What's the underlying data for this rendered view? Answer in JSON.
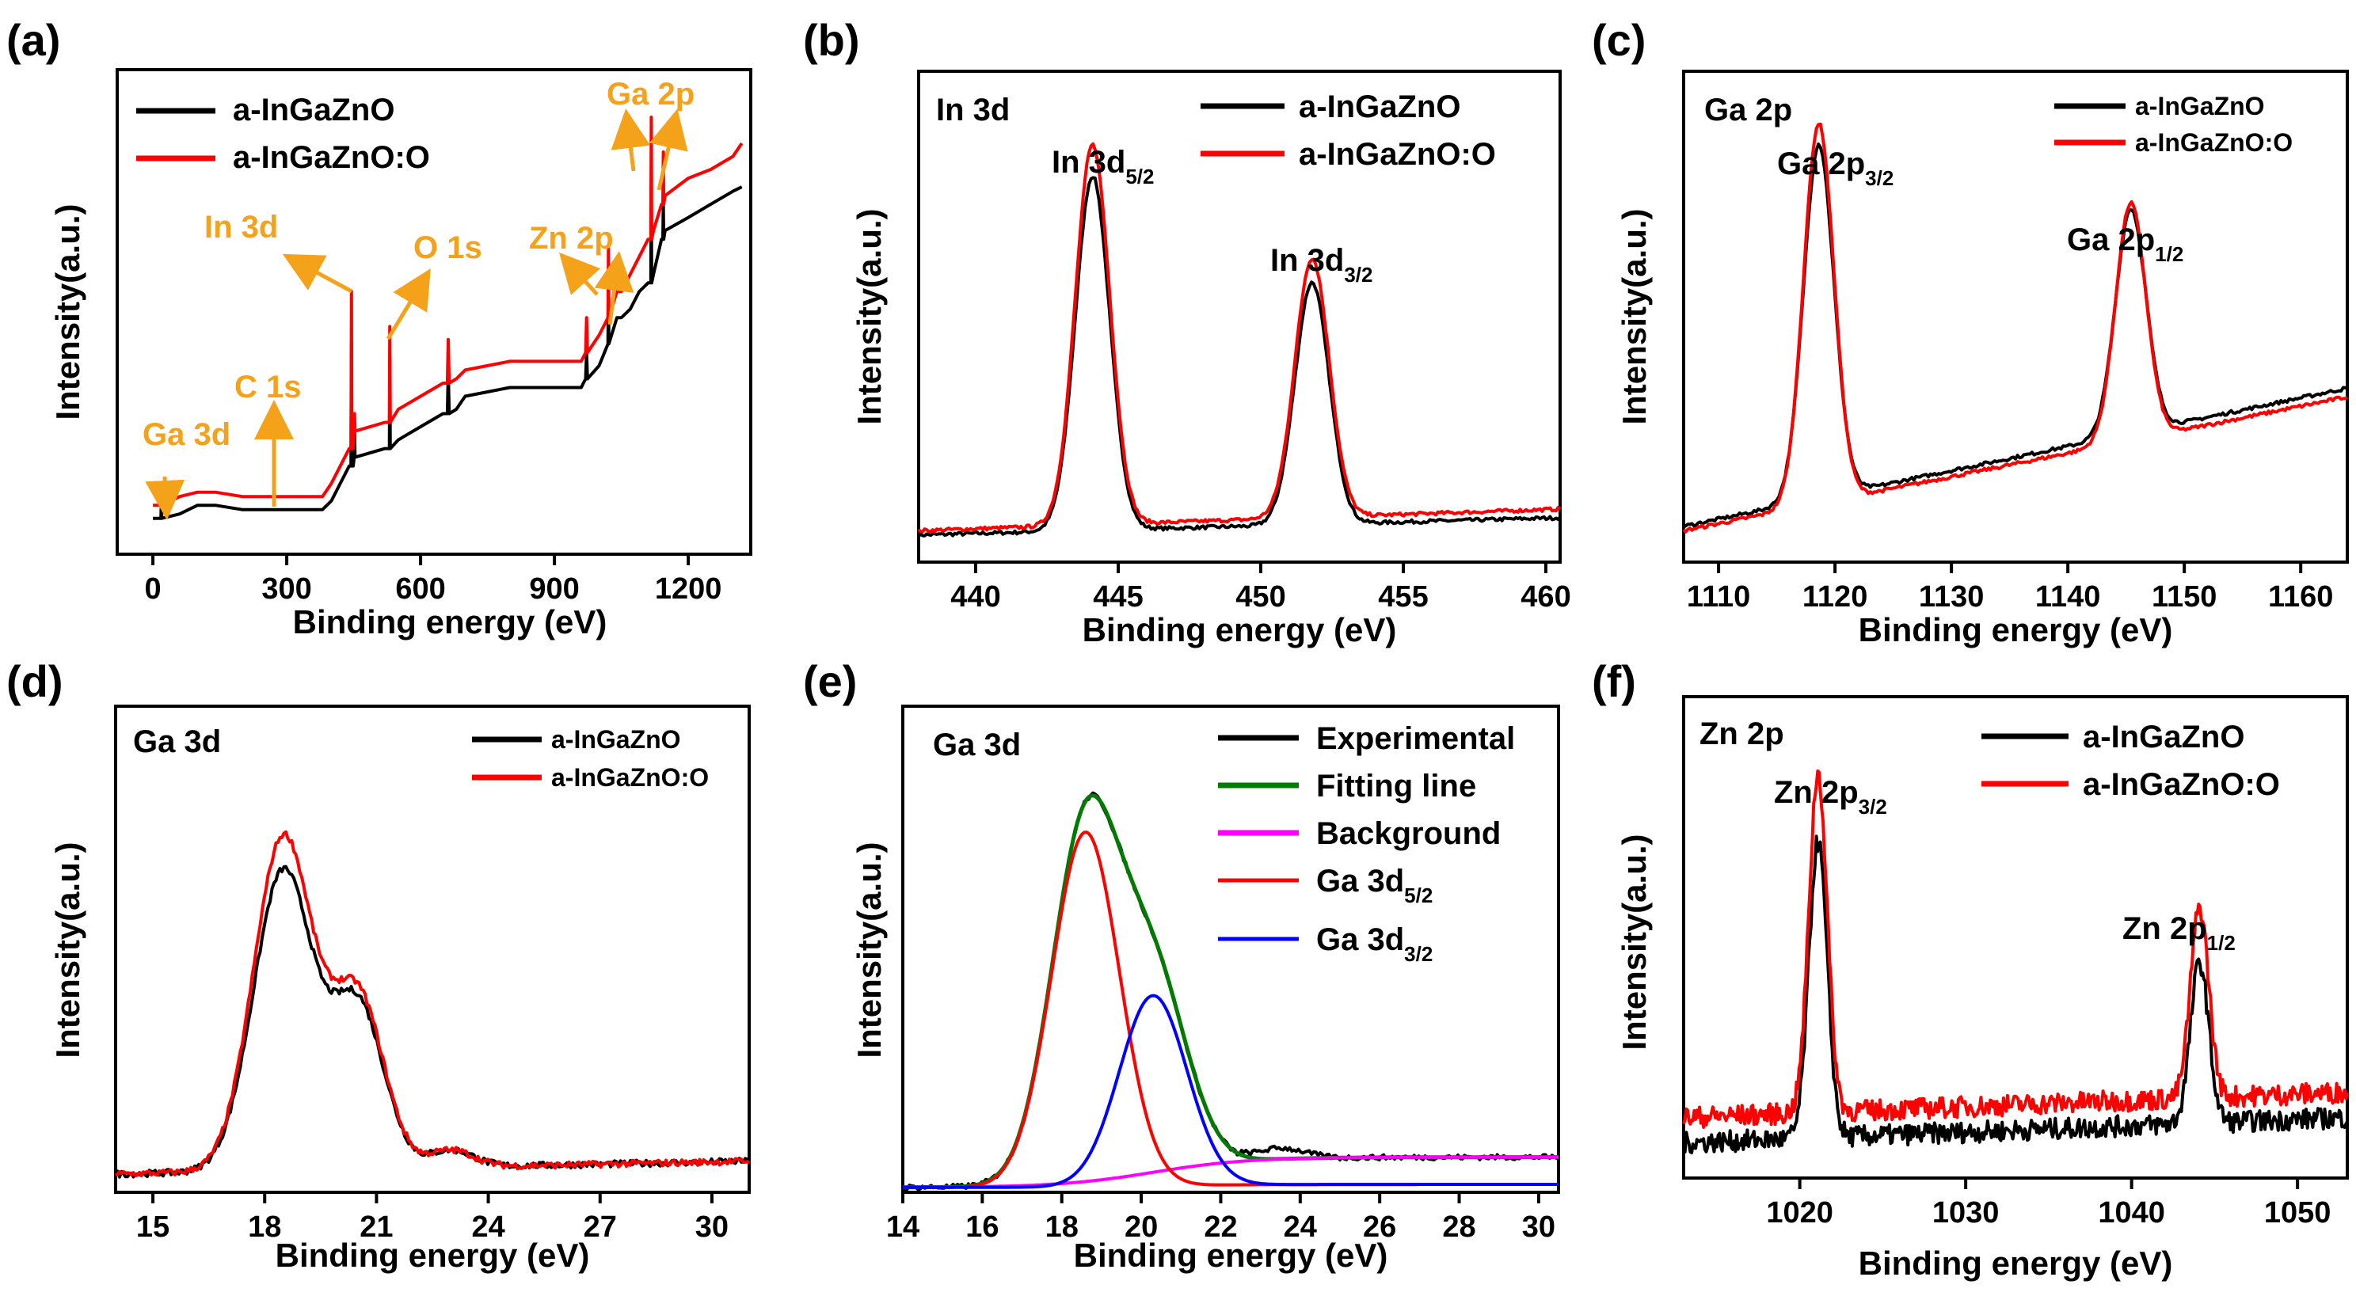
{
  "colors": {
    "black": "#000000",
    "red": "#ff0000",
    "green": "#007a00",
    "magenta": "#ff00ff",
    "blue": "#0000ff",
    "orange": "#f5a21b"
  },
  "chart_data": [
    {
      "id": "a",
      "panel_label": "(a)",
      "type": "line",
      "title": "",
      "xlabel": "Binding energy (eV)",
      "ylabel": "Intensity(a.u.)",
      "xlim": [
        -80,
        1340
      ],
      "ylim": [
        0,
        100
      ],
      "xticks": [
        0,
        300,
        600,
        900,
        1200
      ],
      "xtick_labels": [
        "0",
        "300",
        "600",
        "900",
        "1200"
      ],
      "legend": [
        {
          "name": "a-InGaZnO",
          "color": "#000000"
        },
        {
          "name": "a-InGaZnO:O",
          "color": "#ff0000"
        }
      ],
      "series": [
        {
          "name": "a-InGaZnO",
          "color": "#000000",
          "x": [
            0,
            18,
            19,
            20,
            60,
            100,
            140,
            200,
            260,
            290,
            300,
            380,
            400,
            420,
            440,
            444,
            445,
            446,
            449,
            451,
            452,
            453,
            520,
            530,
            531,
            532,
            550,
            600,
            650,
            660,
            662,
            664,
            680,
            700,
            750,
            800,
            900,
            960,
            970,
            972,
            974,
            1000,
            1020,
            1021,
            1022,
            1040,
            1050,
            1070,
            1090,
            1110,
            1116,
            1117,
            1118,
            1122,
            1140,
            1143,
            1144,
            1145,
            1148,
            1200,
            1250,
            1300,
            1320
          ],
          "y": [
            6,
            6,
            10,
            6,
            7,
            9,
            9,
            8,
            8,
            8,
            8,
            8,
            10,
            14,
            18,
            18,
            46,
            18,
            18,
            20,
            26,
            20,
            22,
            22,
            43,
            22,
            24,
            27,
            30,
            30,
            40,
            30,
            31,
            34,
            35,
            36,
            36,
            36,
            38,
            44,
            38,
            41,
            46,
            62,
            46,
            52,
            52,
            54,
            58,
            60,
            60,
            82,
            60,
            62,
            70,
            70,
            78,
            70,
            72,
            75,
            78,
            81,
            82
          ]
        },
        {
          "name": "a-InGaZnO:O",
          "color": "#ff0000",
          "x": [
            0,
            18,
            19,
            20,
            60,
            100,
            140,
            200,
            260,
            290,
            300,
            380,
            400,
            420,
            440,
            444,
            445,
            446,
            449,
            451,
            452,
            453,
            520,
            530,
            531,
            532,
            550,
            600,
            650,
            660,
            662,
            664,
            680,
            700,
            750,
            800,
            900,
            960,
            970,
            972,
            974,
            1000,
            1020,
            1021,
            1022,
            1040,
            1050,
            1070,
            1090,
            1110,
            1116,
            1117,
            1118,
            1122,
            1140,
            1143,
            1144,
            1145,
            1148,
            1200,
            1250,
            1300,
            1320
          ],
          "y": [
            9,
            9,
            14,
            9,
            11,
            12,
            12,
            11,
            11,
            11,
            11,
            11,
            14,
            18,
            22,
            22,
            58,
            22,
            22,
            26,
            30,
            26,
            28,
            28,
            50,
            28,
            31,
            34,
            37,
            37,
            47,
            37,
            38,
            40,
            41,
            42,
            42,
            42,
            44,
            52,
            44,
            48,
            52,
            68,
            52,
            58,
            58,
            62,
            66,
            70,
            70,
            98,
            70,
            72,
            78,
            78,
            90,
            78,
            80,
            84,
            86,
            89,
            92
          ]
        }
      ],
      "annotations": [
        {
          "text": "Ga 3d",
          "x": 18
        },
        {
          "text": "C 1s",
          "x": 285
        },
        {
          "text": "In 3d",
          "x": 445
        },
        {
          "text": "O 1s",
          "x": 531
        },
        {
          "text": "Zn 2p",
          "x": 1021
        },
        {
          "text": "Ga 2p",
          "x": 1117
        }
      ]
    },
    {
      "id": "b",
      "panel_label": "(b)",
      "type": "line",
      "title": "In 3d",
      "xlabel": "Binding energy (eV)",
      "ylabel": "Intensity(a.u.)",
      "xlim": [
        438,
        460.5
      ],
      "ylim": [
        0,
        100
      ],
      "xticks": [
        440,
        445,
        450,
        455,
        460
      ],
      "xtick_labels": [
        "440",
        "445",
        "450",
        "455",
        "460"
      ],
      "legend": [
        {
          "name": "a-InGaZnO",
          "color": "#000000"
        },
        {
          "name": "a-InGaZnO:O",
          "color": "#ff0000"
        }
      ],
      "series": [
        {
          "name": "a-InGaZnO",
          "color": "#000000",
          "peaks": [
            {
              "x0": 444.1,
              "amp": 82,
              "w": 0.6
            },
            {
              "x0": 451.8,
              "amp": 56,
              "w": 0.6
            }
          ],
          "base_start": 4,
          "base_end": 8
        },
        {
          "name": "a-InGaZnO:O",
          "color": "#ff0000",
          "peaks": [
            {
              "x0": 444.1,
              "amp": 88,
              "w": 0.6
            },
            {
              "x0": 451.8,
              "amp": 60,
              "w": 0.6
            }
          ],
          "base_start": 5,
          "base_end": 10
        }
      ],
      "peak_labels": [
        {
          "main": "In 3d",
          "sub": "5/2"
        },
        {
          "main": "In 3d",
          "sub": "3/2"
        }
      ]
    },
    {
      "id": "c",
      "panel_label": "(c)",
      "type": "line",
      "title": "Ga 2p",
      "xlabel": "Binding energy (eV)",
      "ylabel": "Intensity(a.u.)",
      "xlim": [
        1107,
        1164
      ],
      "ylim": [
        0,
        100
      ],
      "xticks": [
        1110,
        1120,
        1130,
        1140,
        1150,
        1160
      ],
      "xtick_labels": [
        "1110",
        "1120",
        "1130",
        "1140",
        "1150",
        "1160"
      ],
      "legend": [
        {
          "name": "a-InGaZnO",
          "color": "#000000"
        },
        {
          "name": "a-InGaZnO:O",
          "color": "#ff0000"
        }
      ],
      "series": [
        {
          "name": "a-InGaZnO",
          "color": "#000000",
          "peaks": [
            {
              "x0": 1118.6,
              "amp": 82,
              "w": 1.3
            },
            {
              "x0": 1145.4,
              "amp": 52,
              "w": 1.3
            }
          ],
          "base_start": 6,
          "base_end": 38
        },
        {
          "name": "a-InGaZnO:O",
          "color": "#ff0000",
          "peaks": [
            {
              "x0": 1118.6,
              "amp": 88,
              "w": 1.3
            },
            {
              "x0": 1145.4,
              "amp": 55,
              "w": 1.3
            }
          ],
          "base_start": 5,
          "base_end": 36
        }
      ],
      "peak_labels": [
        {
          "main": "Ga 2p",
          "sub": "3/2"
        },
        {
          "main": "Ga 2p",
          "sub": "1/2"
        }
      ]
    },
    {
      "id": "d",
      "panel_label": "(d)",
      "type": "line",
      "title": "Ga 3d",
      "xlabel": "Binding energy (eV)",
      "ylabel": "Intensity(a.u.)",
      "xlim": [
        14,
        31
      ],
      "ylim": [
        0,
        100
      ],
      "xticks": [
        15,
        18,
        21,
        24,
        27,
        30
      ],
      "xtick_labels": [
        "15",
        "18",
        "21",
        "24",
        "27",
        "30"
      ],
      "legend": [
        {
          "name": "a-InGaZnO",
          "color": "#000000"
        },
        {
          "name": "a-InGaZnO:O",
          "color": "#ff0000"
        }
      ],
      "series": [
        {
          "name": "a-InGaZnO",
          "color": "#000000",
          "peaks": [
            {
              "x0": 18.5,
              "amp": 70,
              "w": 0.8
            },
            {
              "x0": 20.5,
              "amp": 38,
              "w": 0.7
            },
            {
              "x0": 23,
              "amp": 4,
              "w": 0.6
            }
          ],
          "base_start": 2,
          "base_end": 5
        },
        {
          "name": "a-InGaZnO:O",
          "color": "#ff0000",
          "peaks": [
            {
              "x0": 18.5,
              "amp": 78,
              "w": 0.8
            },
            {
              "x0": 20.5,
              "amp": 40,
              "w": 0.7
            },
            {
              "x0": 23,
              "amp": 4,
              "w": 0.6
            }
          ],
          "base_start": 2,
          "base_end": 5
        }
      ]
    },
    {
      "id": "e",
      "panel_label": "(e)",
      "type": "line",
      "title": "Ga 3d",
      "xlabel": "Binding energy (eV)",
      "ylabel": "Intensity(a.u.)",
      "xlim": [
        14,
        30.5
      ],
      "ylim": [
        0,
        100
      ],
      "xticks": [
        14,
        16,
        18,
        20,
        22,
        24,
        26,
        28,
        30
      ],
      "xtick_labels": [
        "14",
        "16",
        "18",
        "20",
        "22",
        "24",
        "26",
        "28",
        "30"
      ],
      "legend": [
        {
          "name": "Experimental",
          "color": "#000000"
        },
        {
          "name": "Fitting line",
          "color": "#007a00"
        },
        {
          "name": "Background",
          "color": "#ff00ff"
        },
        {
          "name": "Ga 3d",
          "sub": "5/2",
          "color": "#ff0000"
        },
        {
          "name": "Ga 3d",
          "sub": "3/2",
          "color": "#0000ff"
        }
      ],
      "components": {
        "ga3d52": {
          "x0": 18.6,
          "amp": 82,
          "w": 0.85
        },
        "ga3d32": {
          "x0": 20.3,
          "amp": 44,
          "w": 0.85
        },
        "background": {
          "start": 0,
          "end": 7,
          "x_mid": 20.3,
          "width": 1.2
        }
      }
    },
    {
      "id": "f",
      "panel_label": "(f)",
      "type": "line",
      "title": "Zn 2p",
      "xlabel": "Binding energy (eV)",
      "ylabel": "Intensity(a.u.)",
      "xlim": [
        1013,
        1053
      ],
      "ylim": [
        0,
        100
      ],
      "xticks": [
        1020,
        1030,
        1040,
        1050
      ],
      "xtick_labels": [
        "1020",
        "1030",
        "1040",
        "1050"
      ],
      "legend": [
        {
          "name": "a-InGaZnO",
          "color": "#000000"
        },
        {
          "name": "a-InGaZnO:O",
          "color": "#ff0000"
        }
      ],
      "series": [
        {
          "name": "a-InGaZnO",
          "color": "#000000",
          "peaks": [
            {
              "x0": 1021.1,
              "amp": 70,
              "w": 0.55
            },
            {
              "x0": 1044.1,
              "amp": 38,
              "w": 0.55
            }
          ],
          "base_start": 6,
          "base_end": 12
        },
        {
          "name": "a-InGaZnO:O",
          "color": "#ff0000",
          "peaks": [
            {
              "x0": 1021.1,
              "amp": 80,
              "w": 0.55
            },
            {
              "x0": 1044.1,
              "amp": 45,
              "w": 0.55
            }
          ],
          "base_start": 12,
          "base_end": 18
        }
      ],
      "peak_labels": [
        {
          "main": "Zn 2p",
          "sub": "3/2"
        },
        {
          "main": "Zn 2p",
          "sub": "1/2"
        }
      ]
    }
  ]
}
